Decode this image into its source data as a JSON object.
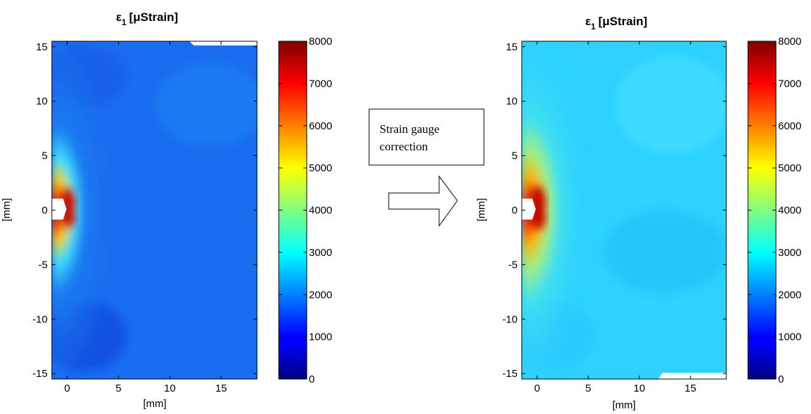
{
  "chart_data": [
    {
      "type": "heatmap",
      "title": "ε1 [μStrain]",
      "title_main": "ε",
      "title_sub": "1",
      "title_unit": "[μStrain]",
      "xlabel": "[mm]",
      "ylabel": "[mm]",
      "xlim": [
        -1.5,
        18.5
      ],
      "ylim": [
        -15.5,
        15.5
      ],
      "xticks": [
        0,
        5,
        10,
        15
      ],
      "yticks": [
        -15,
        -10,
        -5,
        0,
        5,
        10,
        15
      ],
      "colorbar": {
        "min": 0,
        "max": 8000,
        "ticks": [
          0,
          1000,
          2000,
          3000,
          4000,
          5000,
          6000,
          7000,
          8000
        ],
        "colormap": "jet"
      },
      "field": {
        "background_strain": 1500,
        "peak_strain": 8000,
        "peak_location": [
          0.8,
          0
        ],
        "hole_location": [
          0,
          0
        ],
        "description_values": "strain concentration at hole edge decaying to background"
      }
    },
    {
      "type": "heatmap",
      "title": "ε1 [μStrain]",
      "title_main": "ε",
      "title_sub": "1",
      "title_unit": "[μStrain]",
      "xlabel": "[mm]",
      "ylabel": "[mm]",
      "xlim": [
        -1.5,
        18.5
      ],
      "ylim": [
        -15.5,
        15.5
      ],
      "xticks": [
        0,
        5,
        10,
        15
      ],
      "yticks": [
        -15,
        -10,
        -5,
        0,
        5,
        10,
        15
      ],
      "colorbar": {
        "min": 0,
        "max": 8000,
        "ticks": [
          0,
          1000,
          2000,
          3000,
          4000,
          5000,
          6000,
          7000,
          8000
        ],
        "colormap": "jet"
      },
      "field": {
        "background_strain": 2700,
        "peak_strain": 8000,
        "peak_location": [
          0.8,
          0
        ],
        "hole_location": [
          0,
          0
        ]
      }
    }
  ],
  "annotation": {
    "box_text_line1": "Strain gauge",
    "box_text_line2": "correction",
    "arrow": "right-arrow-icon"
  }
}
